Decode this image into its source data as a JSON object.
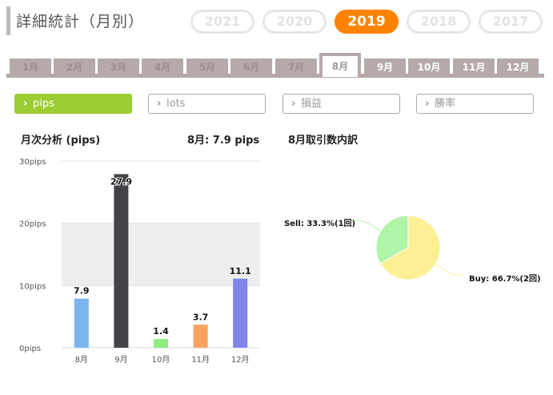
{
  "header": {
    "title": "詳細統計（月別）"
  },
  "years": [
    {
      "label": "2021",
      "active": false
    },
    {
      "label": "2020",
      "active": false
    },
    {
      "label": "2019",
      "active": true
    },
    {
      "label": "2018",
      "active": false
    },
    {
      "label": "2017",
      "active": false
    }
  ],
  "months": [
    {
      "label": "1月",
      "state": "past"
    },
    {
      "label": "2月",
      "state": "past"
    },
    {
      "label": "3月",
      "state": "past"
    },
    {
      "label": "4月",
      "state": "past"
    },
    {
      "label": "5月",
      "state": "past"
    },
    {
      "label": "6月",
      "state": "past"
    },
    {
      "label": "7月",
      "state": "past"
    },
    {
      "label": "8月",
      "state": "active"
    },
    {
      "label": "9月",
      "state": "future"
    },
    {
      "label": "10月",
      "state": "future"
    },
    {
      "label": "11月",
      "state": "future"
    },
    {
      "label": "12月",
      "state": "future"
    }
  ],
  "metrics": [
    {
      "label": "pips",
      "active": true
    },
    {
      "label": "lots",
      "active": false
    },
    {
      "label": "損益",
      "active": false
    },
    {
      "label": "勝率",
      "active": false
    }
  ],
  "summary": {
    "analysis_title": "月次分析 (pips)",
    "current_value": "8月:  7.9 pips",
    "breakdown_title": "8月取引数内訳"
  },
  "chart_data": [
    {
      "type": "bar",
      "categories": [
        "8月",
        "9月",
        "10月",
        "11月",
        "12月"
      ],
      "values": [
        7.9,
        27.9,
        1.4,
        3.7,
        11.1
      ],
      "value_labels": [
        "7.9",
        "27.9",
        "1.4",
        "3.7",
        "11.1"
      ],
      "colors": [
        "#7cb5ec",
        "#434348",
        "#90ed7d",
        "#f7a35c",
        "#8085e9"
      ],
      "ylim": [
        0,
        30
      ],
      "yticks": [
        {
          "value": 0,
          "label": "0pips"
        },
        {
          "value": 10,
          "label": "10pips"
        },
        {
          "value": 20,
          "label": "20pips"
        },
        {
          "value": 30,
          "label": "30pips"
        }
      ],
      "grid": true
    },
    {
      "type": "pie",
      "slices": [
        {
          "label": "Buy: 66.7%(2回)",
          "value": 66.7,
          "color": "#fcef94"
        },
        {
          "label": "Sell: 33.3%(1回)",
          "value": 33.3,
          "color": "#aef5a8"
        }
      ]
    }
  ]
}
